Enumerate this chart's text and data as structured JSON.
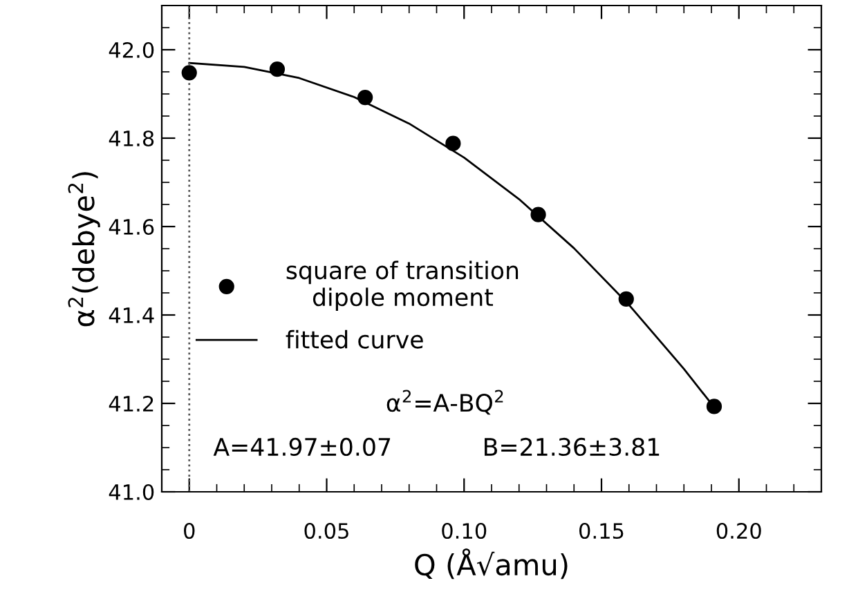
{
  "chart_data": {
    "type": "scatter",
    "xlabel": "Q (Å√amu)",
    "ylabel": "α$^{2}$(debye$^{2}$)",
    "series": [
      {
        "name": "square of transition\ndipole moment",
        "color": "#000000",
        "marker": "circle",
        "x": [
          0,
          0.032,
          0.064,
          0.096,
          0.127,
          0.159,
          0.191
        ],
        "values": [
          41.948,
          41.956,
          41.892,
          41.788,
          41.627,
          41.436,
          41.193
        ]
      },
      {
        "name": "fitted curve",
        "type": "line",
        "color": "#000000",
        "marker": "none",
        "line_style": "solid",
        "x": [
          0,
          0.02,
          0.04,
          0.06,
          0.08,
          0.1,
          0.12,
          0.14,
          0.16,
          0.18,
          0.19
        ],
        "values": [
          41.97,
          41.961,
          41.936,
          41.893,
          41.833,
          41.756,
          41.662,
          41.551,
          41.423,
          41.278,
          41.199
        ]
      }
    ],
    "ref_lines": [
      {
        "axis": "x",
        "value": 0,
        "color": "#555555",
        "line_style": "dotted"
      }
    ],
    "annotations": [
      "α$^{2}$=A-BQ$^{2}$",
      "A=41.97±0.07",
      "B=21.36±3.81"
    ],
    "xlim": [
      -0.01,
      0.23
    ],
    "xticks": [
      0,
      0.05,
      {
        "value": 0.1,
        "label": "0.10"
      },
      0.15,
      {
        "value": 0.2,
        "label": "0.20"
      }
    ],
    "ylim": [
      41.0,
      42.1
    ],
    "yticks": [
      {
        "value": 41.0,
        "label": "41.0"
      },
      41.2,
      41.4,
      41.6,
      41.8,
      {
        "value": 42.0,
        "label": "42.0"
      }
    ],
    "grid": false,
    "legend": "left"
  }
}
